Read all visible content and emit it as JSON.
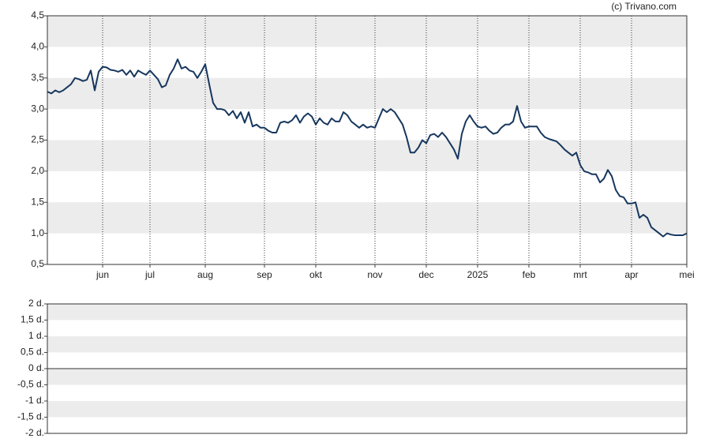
{
  "credit": "(c) Trivano.com",
  "chart_data": [
    {
      "type": "line",
      "color": "#17375e",
      "grid": true,
      "categories": [
        null,
        null,
        null,
        null,
        null,
        null,
        null,
        null,
        null,
        null,
        null,
        null,
        null,
        null,
        "jun",
        null,
        null,
        null,
        null,
        null,
        null,
        null,
        null,
        null,
        null,
        null,
        "jul",
        null,
        null,
        null,
        null,
        null,
        null,
        null,
        null,
        null,
        null,
        null,
        null,
        null,
        "aug",
        null,
        null,
        null,
        null,
        null,
        null,
        null,
        null,
        null,
        null,
        null,
        null,
        null,
        null,
        "sep",
        null,
        null,
        null,
        null,
        null,
        null,
        null,
        null,
        null,
        null,
        null,
        null,
        "okt",
        null,
        null,
        null,
        null,
        null,
        null,
        null,
        null,
        null,
        null,
        null,
        null,
        null,
        null,
        "nov",
        null,
        null,
        null,
        null,
        null,
        null,
        null,
        null,
        null,
        null,
        null,
        null,
        "dec",
        null,
        null,
        null,
        null,
        null,
        null,
        null,
        null,
        null,
        null,
        null,
        null,
        "2025",
        null,
        null,
        null,
        null,
        null,
        null,
        null,
        null,
        null,
        null,
        null,
        null,
        "feb",
        null,
        null,
        null,
        null,
        null,
        null,
        null,
        null,
        null,
        null,
        null,
        null,
        "mrt",
        null,
        null,
        null,
        null,
        null,
        null,
        null,
        null,
        null,
        null,
        null,
        null,
        "apr",
        null,
        null,
        null,
        null,
        null,
        null,
        null,
        null,
        null,
        null,
        null,
        null,
        null,
        "mei"
      ],
      "values": [
        3.28,
        3.25,
        3.3,
        3.27,
        3.3,
        3.35,
        3.4,
        3.5,
        3.48,
        3.45,
        3.47,
        3.62,
        3.3,
        3.6,
        3.68,
        3.67,
        3.63,
        3.62,
        3.6,
        3.63,
        3.55,
        3.62,
        3.52,
        3.62,
        3.58,
        3.55,
        3.62,
        3.55,
        3.48,
        3.35,
        3.38,
        3.55,
        3.65,
        3.8,
        3.65,
        3.68,
        3.62,
        3.6,
        3.5,
        3.6,
        3.72,
        3.4,
        3.1,
        3.0,
        3.0,
        2.98,
        2.9,
        2.97,
        2.85,
        2.95,
        2.78,
        2.95,
        2.72,
        2.75,
        2.7,
        2.7,
        2.65,
        2.62,
        2.62,
        2.78,
        2.8,
        2.78,
        2.82,
        2.9,
        2.78,
        2.88,
        2.93,
        2.88,
        2.75,
        2.85,
        2.78,
        2.75,
        2.85,
        2.8,
        2.8,
        2.95,
        2.9,
        2.8,
        2.75,
        2.7,
        2.75,
        2.7,
        2.72,
        2.7,
        2.85,
        3.0,
        2.95,
        3.0,
        2.95,
        2.85,
        2.75,
        2.55,
        2.3,
        2.3,
        2.38,
        2.5,
        2.45,
        2.58,
        2.6,
        2.55,
        2.62,
        2.55,
        2.45,
        2.35,
        2.2,
        2.6,
        2.8,
        2.9,
        2.8,
        2.72,
        2.7,
        2.72,
        2.65,
        2.6,
        2.62,
        2.7,
        2.75,
        2.75,
        2.8,
        3.05,
        2.8,
        2.7,
        2.72,
        2.72,
        2.72,
        2.62,
        2.55,
        2.52,
        2.5,
        2.48,
        2.42,
        2.35,
        2.3,
        2.25,
        2.3,
        2.1,
        2.0,
        1.98,
        1.95,
        1.95,
        1.82,
        1.88,
        2.02,
        1.92,
        1.7,
        1.6,
        1.58,
        1.48,
        1.48,
        1.5,
        1.25,
        1.3,
        1.25,
        1.1,
        1.05,
        1.0,
        0.95,
        1.0,
        0.98,
        0.97,
        0.97,
        0.97,
        1.0
      ],
      "ylim": [
        0.5,
        4.5
      ],
      "yticks": [
        {
          "value": 0.5,
          "label": "0,5"
        },
        {
          "value": 1.0,
          "label": "1,0"
        },
        {
          "value": 1.5,
          "label": "1,5"
        },
        {
          "value": 2.0,
          "label": "2,0"
        },
        {
          "value": 2.5,
          "label": "2,5"
        },
        {
          "value": 3.0,
          "label": "3,0"
        },
        {
          "value": 3.5,
          "label": "3,5"
        },
        {
          "value": 4.0,
          "label": "4,0"
        },
        {
          "value": 4.5,
          "label": "4,5"
        }
      ]
    },
    {
      "type": "bar",
      "ylim": [
        -2,
        2
      ],
      "yticks": [
        {
          "value": -2,
          "label": "-2 d."
        },
        {
          "value": -1.5,
          "label": "-1,5 d."
        },
        {
          "value": -1,
          "label": "-1 d."
        },
        {
          "value": -0.5,
          "label": "-0,5 d."
        },
        {
          "value": 0,
          "label": "0 d."
        },
        {
          "value": 0.5,
          "label": "0,5 d."
        },
        {
          "value": 1,
          "label": "1 d."
        },
        {
          "value": 1.5,
          "label": "1,5 d."
        },
        {
          "value": 2,
          "label": "2 d."
        }
      ]
    }
  ]
}
